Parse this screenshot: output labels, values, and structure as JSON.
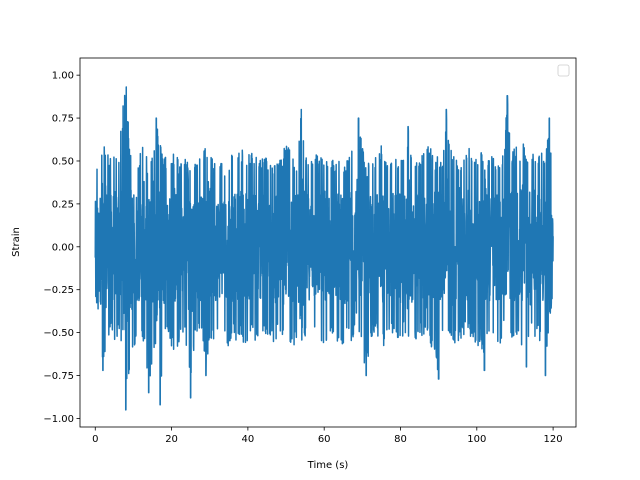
{
  "chart_data": {
    "type": "line",
    "title": "",
    "xlabel": "Time (s)",
    "ylabel": "Strain",
    "xlim": [
      -4,
      126
    ],
    "ylim": [
      -1.05,
      1.1
    ],
    "xticks": [
      0,
      20,
      40,
      60,
      80,
      100,
      120
    ],
    "xtick_labels": [
      "0",
      "20",
      "40",
      "60",
      "80",
      "100",
      "120"
    ],
    "yticks": [
      -1.0,
      -0.75,
      -0.5,
      -0.25,
      0.0,
      0.25,
      0.5,
      0.75,
      1.0
    ],
    "ytick_labels": [
      "−1.00",
      "−0.75",
      "−0.50",
      "−0.25",
      "0.00",
      "0.25",
      "0.50",
      "0.75",
      "1.00"
    ],
    "grid": false,
    "legend": {
      "placement": "top-right",
      "entries": []
    },
    "series_color": "#1f77b4",
    "series": [
      {
        "x": [
          0,
          1,
          2,
          3,
          4,
          5,
          6,
          7,
          8,
          9,
          10,
          11,
          12,
          13,
          14,
          15,
          16,
          17,
          18,
          19,
          20,
          21,
          22,
          23,
          24,
          25,
          26,
          27,
          28,
          29,
          30,
          31,
          32,
          33,
          34,
          35,
          36,
          37,
          38,
          39,
          40,
          41,
          42,
          43,
          44,
          45,
          46,
          47,
          48,
          49,
          50,
          51,
          52,
          53,
          54,
          55,
          56,
          57,
          58,
          59,
          60,
          61,
          62,
          63,
          64,
          65,
          66,
          67,
          68,
          69,
          70,
          71,
          72,
          73,
          74,
          75,
          76,
          77,
          78,
          79,
          80,
          81,
          82,
          83,
          84,
          85,
          86,
          87,
          88,
          89,
          90,
          91,
          92,
          93,
          94,
          95,
          96,
          97,
          98,
          99,
          100,
          101,
          102,
          103,
          104,
          105,
          106,
          107,
          108,
          109,
          110,
          111,
          112,
          113,
          114,
          115,
          116,
          117,
          118,
          119,
          120
        ],
        "max": [
          0.44,
          0.55,
          0.58,
          0.6,
          0.52,
          0.58,
          0.5,
          0.75,
          1.0,
          0.62,
          0.55,
          0.48,
          0.58,
          0.65,
          0.5,
          0.55,
          0.75,
          0.6,
          0.55,
          0.52,
          0.5,
          0.6,
          0.48,
          0.55,
          0.5,
          0.48,
          0.52,
          0.5,
          0.55,
          0.6,
          0.58,
          0.52,
          0.5,
          0.53,
          0.48,
          0.52,
          0.55,
          0.5,
          0.6,
          0.55,
          0.52,
          0.58,
          0.55,
          0.5,
          0.55,
          0.52,
          0.5,
          0.48,
          0.52,
          0.55,
          0.6,
          0.58,
          0.55,
          0.5,
          0.8,
          0.55,
          0.52,
          0.5,
          0.55,
          0.52,
          0.55,
          0.5,
          0.52,
          0.48,
          0.55,
          0.5,
          0.52,
          0.58,
          0.6,
          0.75,
          0.58,
          0.52,
          0.55,
          0.5,
          0.55,
          0.6,
          0.52,
          0.5,
          0.55,
          0.5,
          0.55,
          0.52,
          0.7,
          0.55,
          0.52,
          0.5,
          0.55,
          0.6,
          0.58,
          0.5,
          0.55,
          0.52,
          0.8,
          0.55,
          0.6,
          0.52,
          0.5,
          0.55,
          0.58,
          0.52,
          0.55,
          0.6,
          0.5,
          0.55,
          0.58,
          0.52,
          0.5,
          0.55,
          0.88,
          0.52,
          0.6,
          0.55,
          0.65,
          0.5,
          0.6,
          0.55,
          0.5,
          0.58,
          0.5,
          0.75,
          0.25
        ],
        "min": [
          -0.27,
          -0.45,
          -0.72,
          -0.55,
          -0.5,
          -0.55,
          -0.52,
          -0.65,
          -0.95,
          -0.72,
          -0.6,
          -0.55,
          -0.5,
          -0.6,
          -0.85,
          -0.7,
          -0.65,
          -0.92,
          -0.55,
          -0.5,
          -0.6,
          -0.62,
          -0.55,
          -0.5,
          -0.6,
          -0.88,
          -0.55,
          -0.5,
          -0.52,
          -0.75,
          -0.6,
          -0.55,
          -0.5,
          -0.52,
          -0.55,
          -0.6,
          -0.5,
          -0.55,
          -0.52,
          -0.6,
          -0.55,
          -0.5,
          -0.58,
          -0.55,
          -0.5,
          -0.52,
          -0.55,
          -0.6,
          -0.5,
          -0.55,
          -0.52,
          -0.55,
          -0.6,
          -0.5,
          -0.55,
          -0.52,
          -0.55,
          -0.5,
          -0.58,
          -0.55,
          -0.6,
          -0.52,
          -0.5,
          -0.55,
          -0.55,
          -0.6,
          -0.5,
          -0.55,
          -0.52,
          -0.55,
          -0.62,
          -0.75,
          -0.55,
          -0.5,
          -0.52,
          -0.55,
          -0.6,
          -0.5,
          -0.52,
          -0.55,
          -0.55,
          -0.5,
          -0.52,
          -0.6,
          -0.55,
          -0.5,
          -0.55,
          -0.52,
          -0.58,
          -0.65,
          -0.77,
          -0.55,
          -0.5,
          -0.52,
          -0.55,
          -0.6,
          -0.55,
          -0.5,
          -0.52,
          -0.55,
          -0.6,
          -0.55,
          -0.72,
          -0.5,
          -0.52,
          -0.55,
          -0.6,
          -0.5,
          -0.55,
          -0.52,
          -0.55,
          -0.55,
          -0.6,
          -0.7,
          -0.5,
          -0.55,
          -0.52,
          -0.6,
          -0.75,
          -0.5,
          -0.25
        ]
      }
    ]
  }
}
